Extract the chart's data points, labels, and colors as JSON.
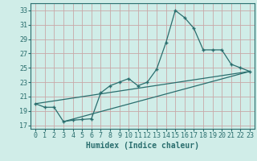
{
  "title": "",
  "xlabel": "Humidex (Indice chaleur)",
  "ylabel": "",
  "xlim": [
    -0.5,
    23.5
  ],
  "ylim": [
    16.5,
    34
  ],
  "yticks": [
    17,
    19,
    21,
    23,
    25,
    27,
    29,
    31,
    33
  ],
  "xticks": [
    0,
    1,
    2,
    3,
    4,
    5,
    6,
    7,
    8,
    9,
    10,
    11,
    12,
    13,
    14,
    15,
    16,
    17,
    18,
    19,
    20,
    21,
    22,
    23
  ],
  "bg_color": "#d0ede8",
  "grid_color": "#c8a8a8",
  "line_color": "#2a6e6e",
  "marker_color": "#2a6e6e",
  "line1_x": [
    0,
    1,
    2,
    3,
    4,
    5,
    6,
    7,
    8,
    9,
    10,
    11,
    12,
    13,
    14,
    15,
    16,
    17,
    18,
    19,
    20,
    21,
    22,
    23
  ],
  "line1_y": [
    20.0,
    19.5,
    19.5,
    17.5,
    17.7,
    17.8,
    17.9,
    21.5,
    22.5,
    23.0,
    23.5,
    22.5,
    23.0,
    24.8,
    28.5,
    33.0,
    32.0,
    30.5,
    27.5,
    27.5,
    27.5,
    25.5,
    25.0,
    24.5
  ],
  "line3_x": [
    0,
    23
  ],
  "line3_y": [
    20.0,
    24.5
  ],
  "line4_x": [
    3,
    23
  ],
  "line4_y": [
    17.5,
    24.5
  ],
  "font_size_xlabel": 7,
  "font_size_ticks": 6
}
